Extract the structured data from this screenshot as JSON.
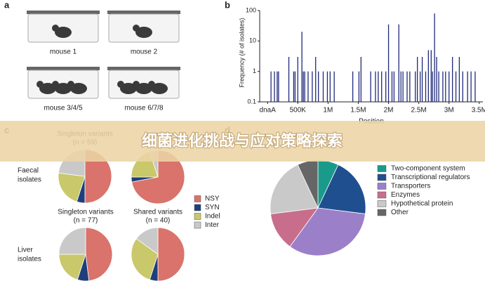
{
  "banner": {
    "title": "细菌进化挑战与应对策略探索"
  },
  "panel_a": {
    "label": "a",
    "cages": [
      "mouse 1",
      "mouse 2",
      "mouse 3/4/5",
      "mouse 6/7/8"
    ],
    "mice": [
      1,
      1,
      3,
      3
    ]
  },
  "chart_data": [
    {
      "type": "bar",
      "panel": "b",
      "x_label": "Position",
      "y_label": "Frequency (# of isolates)",
      "log_y": true,
      "color": "#1f2a7a",
      "xlim": [
        -130000,
        3560000
      ],
      "xticks": [
        {
          "value": 0,
          "label": "dnaA"
        },
        {
          "value": 500000,
          "label": "500K"
        },
        {
          "value": 1000000,
          "label": "1M"
        },
        {
          "value": 1500000,
          "label": "1.5M"
        },
        {
          "value": 2000000,
          "label": "2M"
        },
        {
          "value": 2500000,
          "label": "2.5M"
        },
        {
          "value": 3000000,
          "label": "3M"
        },
        {
          "value": 3500000,
          "label": "3.5M"
        }
      ],
      "ylim": [
        0.1,
        100
      ],
      "yticks": [
        0.1,
        1,
        10,
        100
      ],
      "x": [
        57000,
        114000,
        159000,
        182000,
        352000,
        432000,
        455000,
        500000,
        568000,
        591000,
        614000,
        670000,
        739000,
        795000,
        841000,
        920000,
        989000,
        1034000,
        1102000,
        1409000,
        1511000,
        1545000,
        1705000,
        1784000,
        1830000,
        1886000,
        1955000,
        2000000,
        2057000,
        2091000,
        2170000,
        2205000,
        2239000,
        2307000,
        2352000,
        2443000,
        2477000,
        2523000,
        2557000,
        2614000,
        2659000,
        2705000,
        2727000,
        2761000,
        2795000,
        2830000,
        2898000,
        2943000,
        3000000,
        3057000,
        3114000,
        3170000,
        3227000,
        3307000,
        3364000,
        3432000
      ],
      "values": [
        1,
        1,
        1,
        1,
        3,
        1,
        1,
        3,
        20,
        1,
        1,
        1,
        1,
        3,
        1,
        1,
        1,
        1,
        1,
        1,
        1,
        3,
        1,
        1,
        1,
        1,
        1,
        35,
        1,
        1,
        35,
        1,
        1,
        1,
        1,
        1,
        3,
        1,
        3,
        1,
        5,
        5,
        1,
        80,
        3,
        1,
        1,
        1,
        1,
        3,
        1,
        3,
        1,
        1,
        1,
        1
      ]
    },
    {
      "type": "pie",
      "panel": "c",
      "categories": [
        "NSY",
        "SYN",
        "Indel",
        "Inter"
      ],
      "colors": [
        "#d9736b",
        "#1f3f7a",
        "#c9c86a",
        "#c9c9c9"
      ],
      "row_labels": [
        [
          "Faecal",
          "isolates"
        ],
        [
          "Liver",
          "isolates"
        ]
      ],
      "pies": [
        {
          "title": "Singleton variants",
          "subtitle": "(n = 59)",
          "values": [
            50,
            5,
            22,
            23
          ]
        },
        {
          "values": [
            72,
            3,
            20,
            5
          ]
        },
        {
          "title": "Singleton variants",
          "subtitle": "(n = 77)",
          "values": [
            48,
            7,
            20,
            25
          ]
        },
        {
          "title": "Shared variants",
          "subtitle": "(n = 40)",
          "values": [
            50,
            5,
            30,
            15
          ]
        }
      ]
    },
    {
      "type": "pie",
      "panel": "d",
      "categories": [
        "Two-component system",
        "Transcriptional regulators",
        "Transporters",
        "Enzymes",
        "Hypothetical protein",
        "Other"
      ],
      "colors": [
        "#1a9a8a",
        "#1f4f8f",
        "#9b80c9",
        "#c86e8c",
        "#c9c9c9",
        "#666666"
      ],
      "values": [
        7,
        20,
        33,
        13,
        20,
        7
      ]
    }
  ]
}
